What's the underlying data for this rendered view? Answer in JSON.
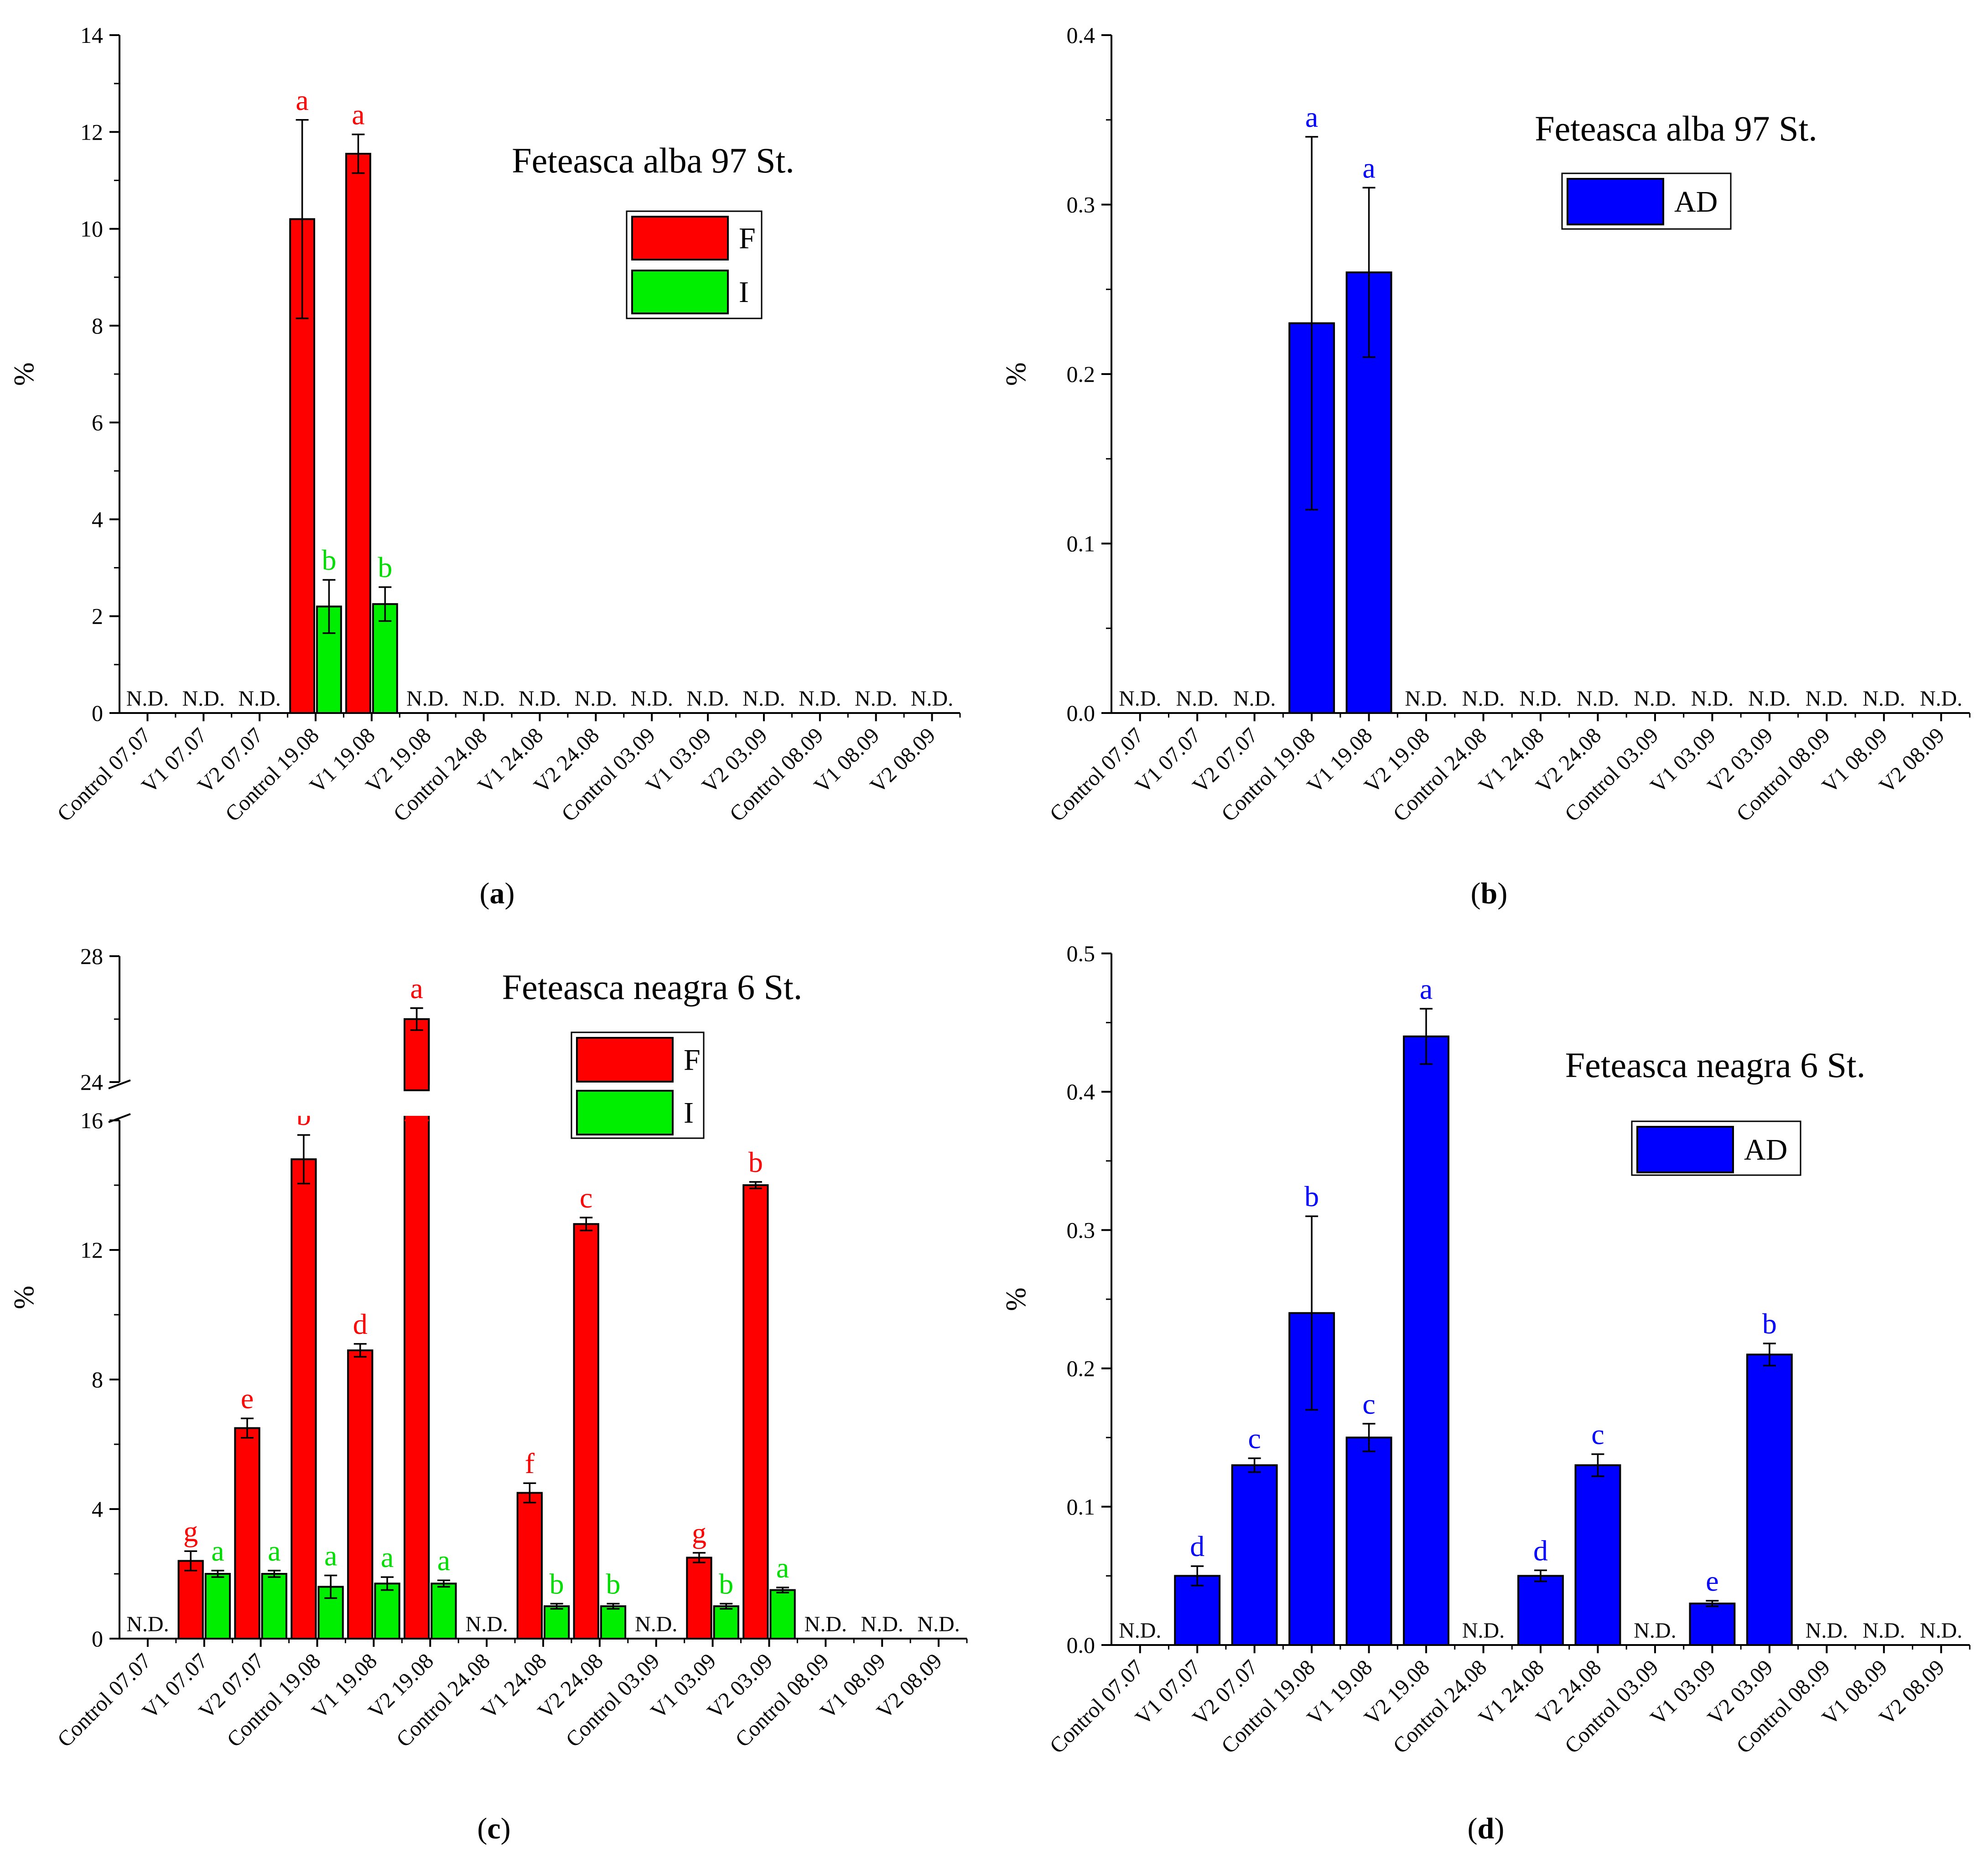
{
  "chart_data": [
    {
      "panel": "a",
      "caption_letter": "a",
      "type": "bar",
      "title": "Feteasca alba 97 St.",
      "ylabel": "%",
      "xlabel": "",
      "ylim": [
        0,
        14
      ],
      "yticks": [
        "0",
        "2",
        "4",
        "6",
        "8",
        "10",
        "12",
        "14"
      ],
      "categories": [
        "Control 07.07",
        "V1 07.07",
        "V2 07.07",
        "Control 19.08",
        "V1 19.08",
        "V2 19.08",
        "Control 24.08",
        "V1 24.08",
        "V2 24.08",
        "Control 03.09",
        "V1 03.09",
        "V2 03.09",
        "Control 08.09",
        "V1 08.09",
        "V2 08.09"
      ],
      "nd_label": "N.D.",
      "nd_categories": [
        0,
        1,
        2,
        5,
        6,
        7,
        8,
        9,
        10,
        11,
        12,
        13,
        14
      ],
      "legend": [
        "F",
        "I"
      ],
      "series": [
        {
          "name": "F",
          "color": "#ff0000",
          "label_color": "#ff0000",
          "values": [
            null,
            null,
            null,
            10.2,
            11.55,
            null,
            null,
            null,
            null,
            null,
            null,
            null,
            null,
            null,
            null
          ],
          "errors": [
            null,
            null,
            null,
            2.05,
            0.4,
            null,
            null,
            null,
            null,
            null,
            null,
            null,
            null,
            null,
            null
          ],
          "letters": [
            null,
            null,
            null,
            "a",
            "a",
            null,
            null,
            null,
            null,
            null,
            null,
            null,
            null,
            null,
            null
          ]
        },
        {
          "name": "I",
          "color": "#00ee00",
          "label_color": "#00dd00",
          "values": [
            null,
            null,
            null,
            2.2,
            2.25,
            null,
            null,
            null,
            null,
            null,
            null,
            null,
            null,
            null,
            null
          ],
          "errors": [
            null,
            null,
            null,
            0.55,
            0.35,
            null,
            null,
            null,
            null,
            null,
            null,
            null,
            null,
            null,
            null
          ],
          "letters": [
            null,
            null,
            null,
            "b",
            "b",
            null,
            null,
            null,
            null,
            null,
            null,
            null,
            null,
            null,
            null
          ]
        }
      ]
    },
    {
      "panel": "b",
      "caption_letter": "b",
      "type": "bar",
      "title": "Feteasca alba 97 St.",
      "ylabel": "%",
      "xlabel": "",
      "ylim": [
        0,
        0.4
      ],
      "yticks": [
        "0.0",
        "0.1",
        "0.2",
        "0.3",
        "0.4"
      ],
      "categories": [
        "Control 07.07",
        "V1 07.07",
        "V2 07.07",
        "Control 19.08",
        "V1 19.08",
        "V2 19.08",
        "Control 24.08",
        "V1 24.08",
        "V2 24.08",
        "Control 03.09",
        "V1 03.09",
        "V2 03.09",
        "Control 08.09",
        "V1 08.09",
        "V2 08.09"
      ],
      "nd_label": "N.D.",
      "nd_categories": [
        0,
        1,
        2,
        5,
        6,
        7,
        8,
        9,
        10,
        11,
        12,
        13,
        14
      ],
      "legend": [
        "AD"
      ],
      "series": [
        {
          "name": "AD",
          "color": "#0000ff",
          "label_color": "#0000ff",
          "values": [
            null,
            null,
            null,
            0.23,
            0.26,
            null,
            null,
            null,
            null,
            null,
            null,
            null,
            null,
            null,
            null
          ],
          "errors": [
            null,
            null,
            null,
            0.11,
            0.05,
            null,
            null,
            null,
            null,
            null,
            null,
            null,
            null,
            null,
            null
          ],
          "letters": [
            null,
            null,
            null,
            "a",
            "a",
            null,
            null,
            null,
            null,
            null,
            null,
            null,
            null,
            null,
            null
          ]
        }
      ]
    },
    {
      "panel": "c",
      "caption_letter": "c",
      "type": "bar",
      "title": "Feteasca neagra 6 St.",
      "ylabel": "%",
      "xlabel": "",
      "ylim": [
        0,
        28
      ],
      "axis_break": [
        16,
        24
      ],
      "yticks": [
        "0",
        "4",
        "8",
        "12",
        "16",
        "24",
        "28"
      ],
      "categories": [
        "Control 07.07",
        "V1 07.07",
        "V2 07.07",
        "Control 19.08",
        "V1 19.08",
        "V2 19.08",
        "Control 24.08",
        "V1 24.08",
        "V2 24.08",
        "Control 03.09",
        "V1 03.09",
        "V2 03.09",
        "Control 08.09",
        "V1 08.09",
        "V2 08.09"
      ],
      "nd_label": "N.D.",
      "nd_categories": [
        0,
        6,
        9,
        12,
        13,
        14
      ],
      "legend": [
        "F",
        "I"
      ],
      "series": [
        {
          "name": "F",
          "color": "#ff0000",
          "label_color": "#ff0000",
          "values": [
            null,
            2.4,
            6.5,
            14.8,
            8.9,
            26.0,
            null,
            4.5,
            12.8,
            null,
            2.5,
            14.0,
            null,
            null,
            null
          ],
          "errors": [
            null,
            0.3,
            0.3,
            0.75,
            0.2,
            0.35,
            null,
            0.3,
            0.2,
            null,
            0.15,
            0.1,
            null,
            null,
            null
          ],
          "letters": [
            null,
            "g",
            "e",
            "b",
            "d",
            "a",
            null,
            "f",
            "c",
            null,
            "g",
            "b",
            null,
            null,
            null
          ]
        },
        {
          "name": "I",
          "color": "#00ee00",
          "label_color": "#00dd00",
          "values": [
            null,
            2.0,
            2.0,
            1.6,
            1.7,
            1.7,
            null,
            1.0,
            1.0,
            null,
            1.0,
            1.5,
            null,
            null,
            null
          ],
          "errors": [
            null,
            0.1,
            0.1,
            0.35,
            0.2,
            0.1,
            null,
            0.08,
            0.08,
            null,
            0.08,
            0.08,
            null,
            null,
            null
          ],
          "letters": [
            null,
            "a",
            "a",
            "a",
            "a",
            "a",
            null,
            "b",
            "b",
            null,
            "b",
            "a",
            null,
            null,
            null
          ]
        }
      ]
    },
    {
      "panel": "d",
      "caption_letter": "d",
      "type": "bar",
      "title": "Feteasca neagra 6 St.",
      "ylabel": "%",
      "xlabel": "",
      "ylim": [
        0,
        0.5
      ],
      "yticks": [
        "0.0",
        "0.1",
        "0.2",
        "0.3",
        "0.4",
        "0.5"
      ],
      "categories": [
        "Control 07.07",
        "V1 07.07",
        "V2 07.07",
        "Control 19.08",
        "V1 19.08",
        "V2 19.08",
        "Control 24.08",
        "V1 24.08",
        "V2 24.08",
        "Control 03.09",
        "V1 03.09",
        "V2 03.09",
        "Control 08.09",
        "V1 08.09",
        "V2 08.09"
      ],
      "nd_label": "N.D.",
      "nd_categories": [
        0,
        6,
        9,
        12,
        13,
        14
      ],
      "legend": [
        "AD"
      ],
      "series": [
        {
          "name": "AD",
          "color": "#0000ff",
          "label_color": "#0000ff",
          "values": [
            null,
            0.05,
            0.13,
            0.24,
            0.15,
            0.44,
            null,
            0.05,
            0.13,
            null,
            0.03,
            0.21,
            null,
            null,
            null
          ],
          "errors": [
            null,
            0.007,
            0.005,
            0.07,
            0.01,
            0.02,
            null,
            0.004,
            0.008,
            null,
            0.002,
            0.008,
            null,
            null,
            null
          ],
          "letters": [
            null,
            "d",
            "c",
            "b",
            "c",
            "a",
            null,
            "d",
            "c",
            null,
            "e",
            "b",
            null,
            null,
            null
          ]
        }
      ]
    }
  ]
}
